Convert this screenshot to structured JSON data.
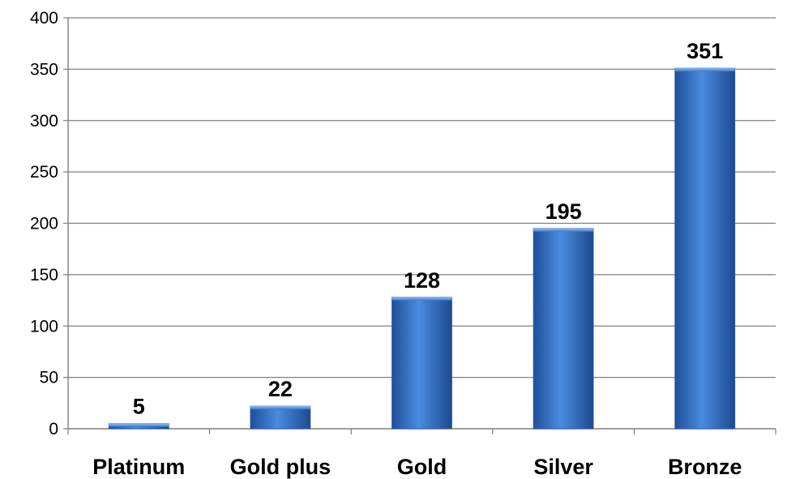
{
  "chart_data": {
    "type": "bar",
    "categories": [
      "Platinum",
      "Gold plus",
      "Gold",
      "Silver",
      "Bronze"
    ],
    "values": [
      5,
      22,
      128,
      195,
      351
    ],
    "data_labels": [
      "5",
      "22",
      "128",
      "195",
      "351"
    ],
    "title": "",
    "xlabel": "",
    "ylabel": "",
    "ylim": [
      0,
      400
    ],
    "yticks": [
      0,
      50,
      100,
      150,
      200,
      250,
      300,
      350,
      400
    ],
    "ytick_labels": [
      "0",
      "50",
      "100",
      "150",
      "200",
      "250",
      "300",
      "350",
      "400"
    ],
    "grid": true,
    "legend": "none",
    "bar_color": "#3b78c8"
  }
}
